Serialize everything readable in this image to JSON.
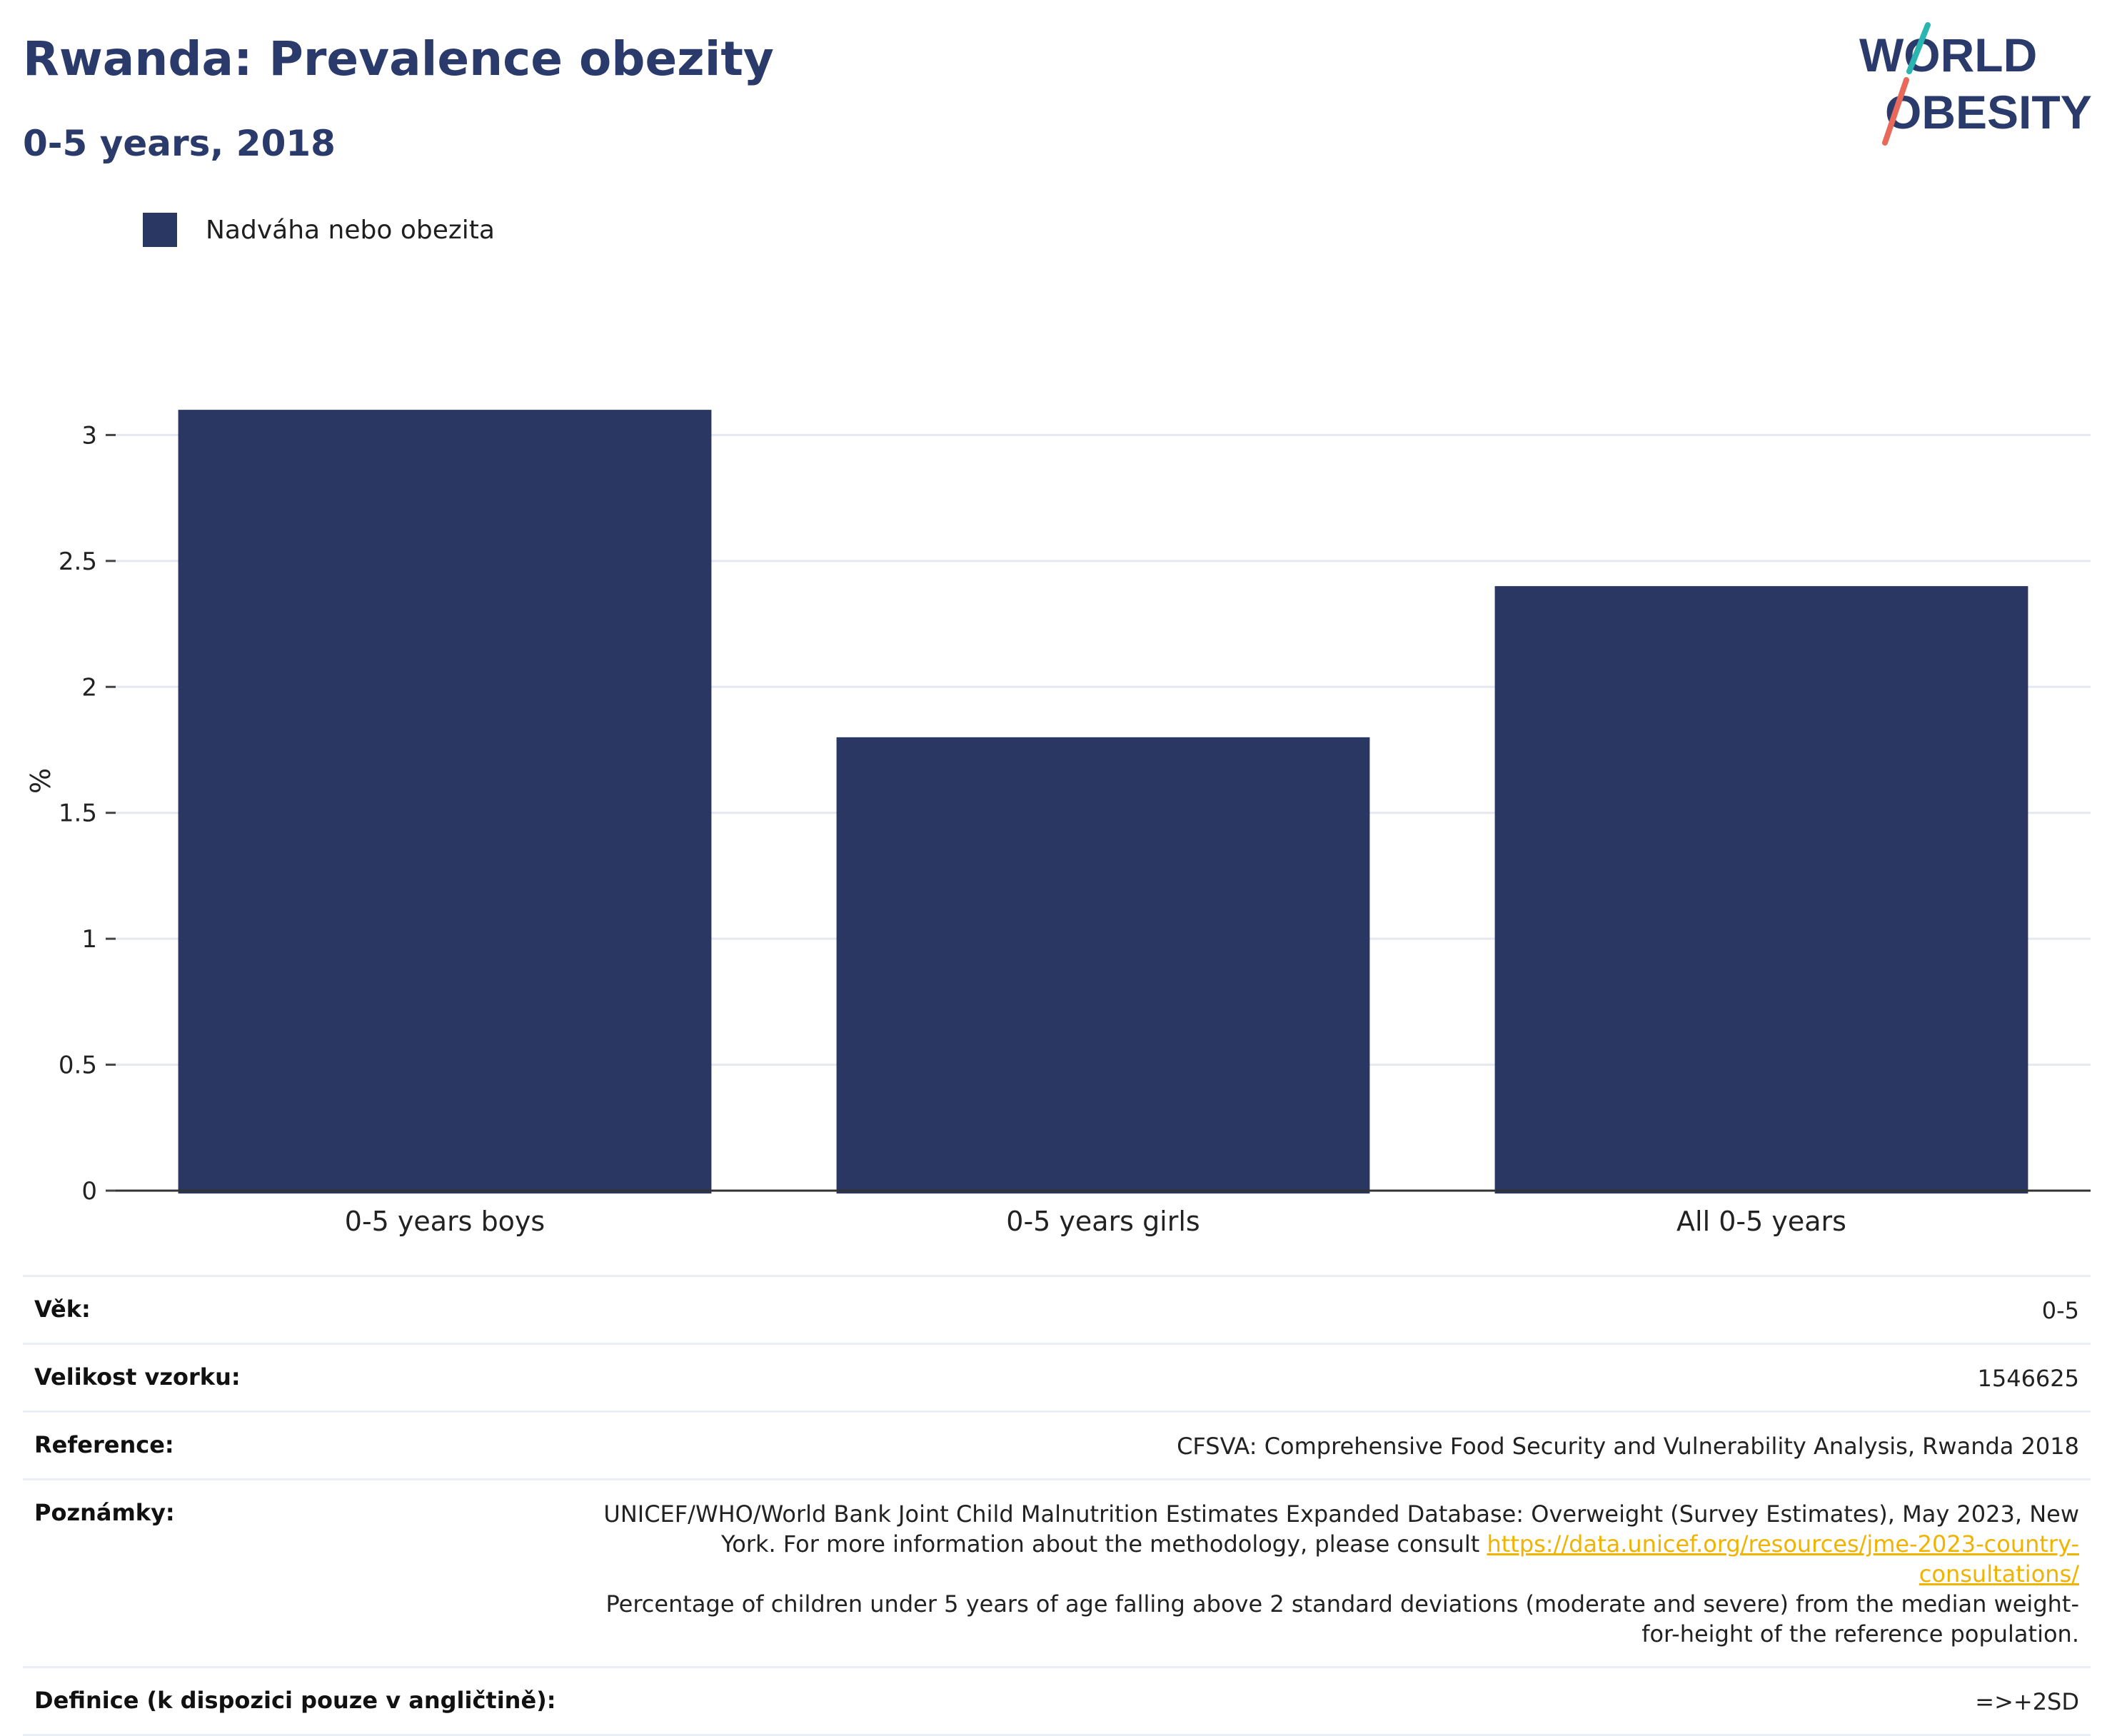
{
  "header": {
    "title": "Rwanda: Prevalence obezity",
    "subtitle": "0-5 years, 2018"
  },
  "logo": {
    "line1": "WORLD",
    "line2": "OBESITY",
    "colors": {
      "text": "#2a3a6b",
      "slash_top": "#2bb5b0",
      "slash_bottom": "#e8685a"
    }
  },
  "legend": {
    "label": "Nadváha nebo obezita",
    "color": "#2a3763"
  },
  "chart_data": {
    "type": "bar",
    "categories": [
      "0-5 years boys",
      "0-5 years girls",
      "All 0-5 years"
    ],
    "series": [
      {
        "name": "Nadváha nebo obezita",
        "values": [
          3.1,
          1.8,
          2.4
        ],
        "color": "#2a3763"
      }
    ],
    "ylabel": "%",
    "ylim": [
      0,
      3.1
    ],
    "yticks": [
      0,
      0.5,
      1,
      1.5,
      2,
      2.5,
      3
    ],
    "ytick_labels": [
      "0",
      "0.5",
      "1",
      "1.5",
      "2",
      "2.5",
      "3"
    ],
    "grid": true,
    "legend_position": "top-left"
  },
  "info": {
    "age_label": "Věk:",
    "age_value": "0-5",
    "sample_label": "Velikost vzorku:",
    "sample_value": "1546625",
    "reference_label": "Reference:",
    "reference_value": "CFSVA: Comprehensive Food Security and Vulnerability Analysis, Rwanda 2018",
    "notes_label": "Poznámky:",
    "notes_text_1": "UNICEF/WHO/World Bank Joint Child Malnutrition Estimates Expanded Database: Overweight (Survey Estimates), May 2023, New York. For more information about the methodology, please consult ",
    "notes_link": "https://data.unicef.org/resources/jme-2023-country-consultations/",
    "notes_text_2": "Percentage of children under 5 years of age falling above 2 standard deviations (moderate and severe) from the median weight-for-height of the reference population.",
    "definition_label": "Definice (k dispozici pouze v angličtině):",
    "definition_value": "=>+2SD"
  }
}
